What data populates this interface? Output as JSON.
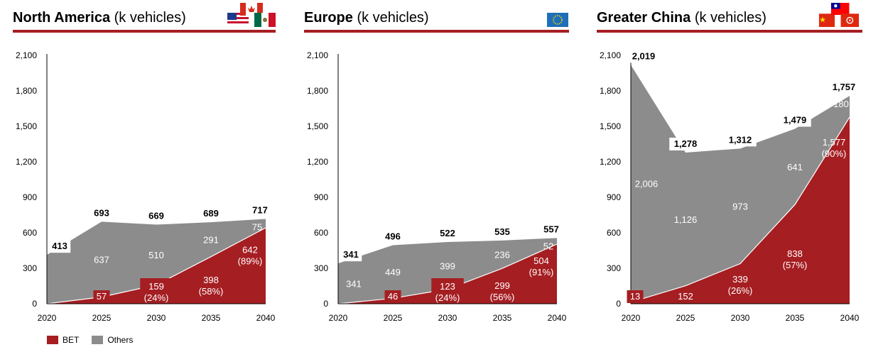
{
  "colors": {
    "bet": "#a51e22",
    "others": "#8c8c8c",
    "axis": "#000000",
    "rule": "#a51e22"
  },
  "legend": {
    "bet": "BET",
    "others": "Others"
  },
  "chart_data": [
    {
      "type": "area",
      "title_region": "North America",
      "title_unit": " (k vehicles)",
      "flag_icons": [
        "us-flag-icon",
        "canada-flag-icon",
        "mexico-flag-icon"
      ],
      "categories": [
        "2020",
        "2025",
        "2030",
        "2035",
        "2040"
      ],
      "y_ticks": [
        "0",
        "300",
        "600",
        "900",
        "1,200",
        "1,500",
        "1,800",
        "2,100"
      ],
      "ylim": [
        0,
        2100
      ],
      "series": [
        {
          "name": "BET",
          "values": [
            0,
            57,
            159,
            398,
            642
          ]
        },
        {
          "name": "Others",
          "values": [
            413,
            637,
            510,
            291,
            75
          ]
        }
      ],
      "totals": [
        "413",
        "693",
        "669",
        "689",
        "717"
      ],
      "total_values": [
        413,
        693,
        669,
        689,
        717
      ],
      "bet_labels": [
        "",
        "57",
        "159",
        "398",
        "642"
      ],
      "bet_shares": [
        "",
        "",
        "(24%)",
        "(58%)",
        "(89%)"
      ],
      "others_labels": [
        "",
        "637",
        "510",
        "291",
        "75"
      ]
    },
    {
      "type": "area",
      "title_region": "Europe",
      "title_unit": " (k vehicles)",
      "flag_icons": [
        "eu-flag-icon"
      ],
      "categories": [
        "2020",
        "2025",
        "2030",
        "2035",
        "2040"
      ],
      "y_ticks": [
        "0",
        "300",
        "600",
        "900",
        "1,200",
        "1,500",
        "1,800",
        "2,100"
      ],
      "ylim": [
        0,
        2100
      ],
      "series": [
        {
          "name": "BET",
          "values": [
            0,
            46,
            123,
            299,
            504
          ]
        },
        {
          "name": "Others",
          "values": [
            341,
            449,
            399,
            236,
            52
          ]
        }
      ],
      "totals": [
        "341",
        "496",
        "522",
        "535",
        "557"
      ],
      "total_values": [
        341,
        496,
        522,
        535,
        557
      ],
      "bet_labels": [
        "",
        "46",
        "123",
        "299",
        "504"
      ],
      "bet_shares": [
        "",
        "",
        "(24%)",
        "(56%)",
        "(91%)"
      ],
      "others_labels": [
        "341",
        "449",
        "399",
        "236",
        "52"
      ]
    },
    {
      "type": "area",
      "title_region": "Greater China",
      "title_unit": " (k vehicles)",
      "flag_icons": [
        "china-flag-icon",
        "taiwan-flag-icon",
        "hong-kong-flag-icon"
      ],
      "categories": [
        "2020",
        "2025",
        "2030",
        "2035",
        "2040"
      ],
      "y_ticks": [
        "0",
        "300",
        "600",
        "900",
        "1,200",
        "1,500",
        "1,800",
        "2,100"
      ],
      "ylim": [
        0,
        2100
      ],
      "series": [
        {
          "name": "BET",
          "values": [
            13,
            152,
            339,
            838,
            1577
          ]
        },
        {
          "name": "Others",
          "values": [
            2006,
            1126,
            973,
            641,
            180
          ]
        }
      ],
      "totals": [
        "2,019",
        "1,278",
        "1,312",
        "1,479",
        "1,757"
      ],
      "total_values": [
        2019,
        1278,
        1312,
        1479,
        1757
      ],
      "bet_labels": [
        "13",
        "152",
        "339",
        "838",
        "1,577"
      ],
      "bet_shares": [
        "",
        "",
        "(26%)",
        "(57%)",
        "(90%)"
      ],
      "others_labels": [
        "2,006",
        "1,126",
        "973",
        "641",
        "180"
      ]
    }
  ]
}
